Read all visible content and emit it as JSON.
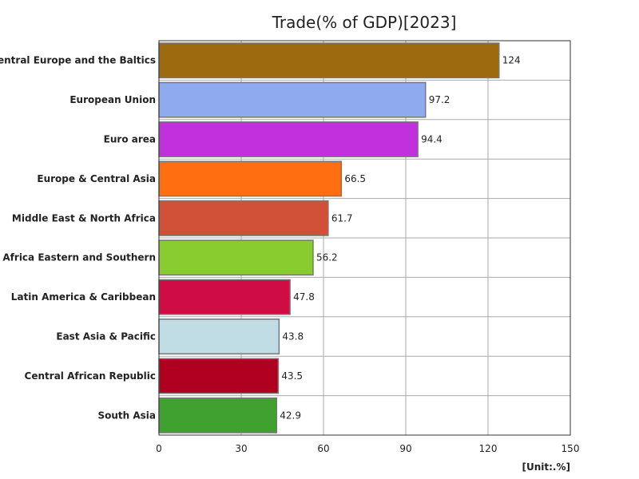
{
  "chart_data": {
    "type": "bar",
    "orientation": "horizontal",
    "title": "Trade(% of GDP)[2023]",
    "unit_label": "[Unit:.%]",
    "categories": [
      "Central Europe and the Baltics",
      "European Union",
      "Euro area",
      "Europe & Central Asia",
      "Middle East & North Africa",
      "Africa Eastern and Southern",
      "Latin America & Caribbean",
      "East Asia & Pacific",
      "Central African Republic",
      "South Asia"
    ],
    "values": [
      124,
      97.2,
      94.4,
      66.5,
      61.7,
      56.2,
      47.8,
      43.8,
      43.5,
      42.9
    ],
    "value_labels": [
      "124",
      "97.2",
      "94.4",
      "66.5",
      "61.7",
      "56.2",
      "47.8",
      "43.8",
      "43.5",
      "42.9"
    ],
    "colors": [
      "#9e6a10",
      "#90aaf0",
      "#c030dc",
      "#ff6e10",
      "#d05038",
      "#88cc30",
      "#d00c44",
      "#c0dce4",
      "#b00020",
      "#40a030"
    ],
    "xlim": [
      0,
      150
    ],
    "xticks": [
      0,
      30,
      60,
      90,
      120,
      150
    ],
    "xtick_labels": [
      "0",
      "30",
      "60",
      "90",
      "120",
      "150"
    ],
    "grid": true,
    "legend": "none"
  }
}
